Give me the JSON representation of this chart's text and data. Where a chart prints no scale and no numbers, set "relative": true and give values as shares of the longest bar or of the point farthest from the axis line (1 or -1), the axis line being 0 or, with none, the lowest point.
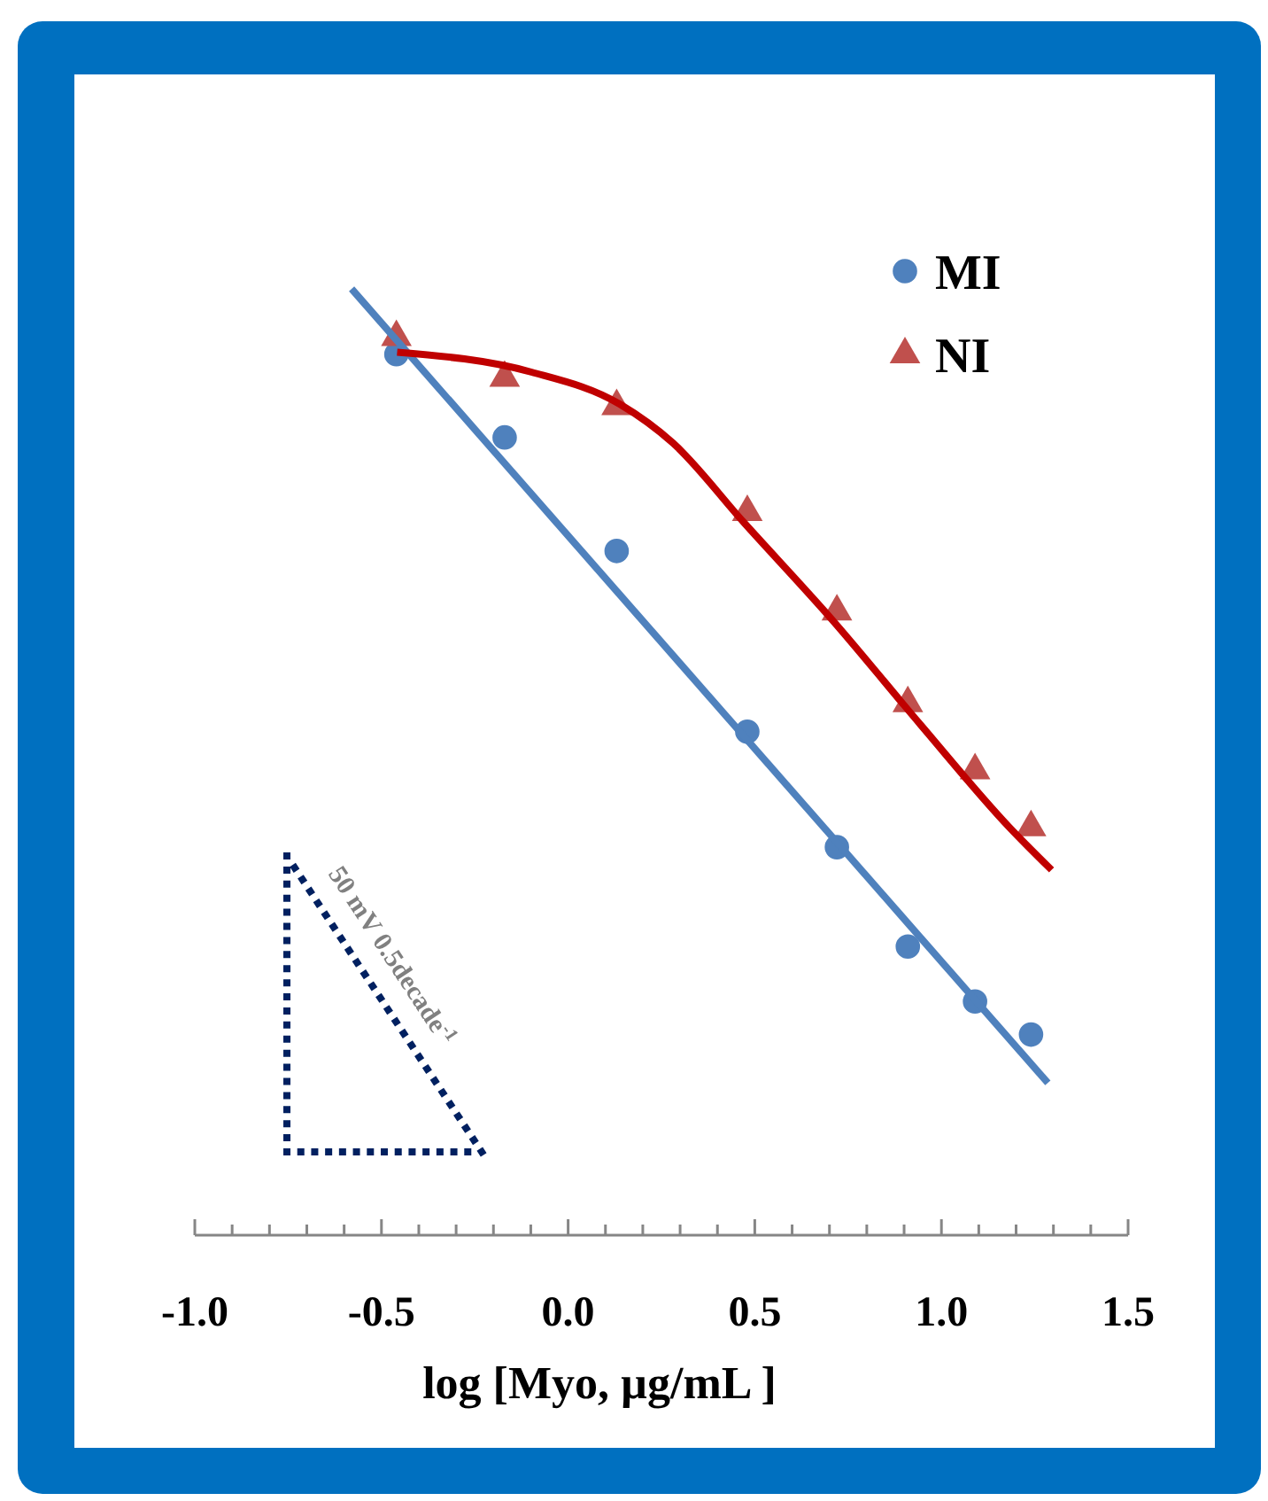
{
  "chart_data": {
    "type": "scatter",
    "relative": true,
    "xlabel": "log [Myo, µg/mL ]",
    "xlim": [
      -1.0,
      1.5
    ],
    "xticks": [
      {
        "value": -1,
        "label": "-1.0"
      },
      {
        "value": -0.9,
        "label": null
      },
      {
        "value": -0.8,
        "label": null
      },
      {
        "value": -0.7,
        "label": null
      },
      {
        "value": -0.6,
        "label": null
      },
      {
        "value": -0.5,
        "label": "-0.5"
      },
      {
        "value": -0.4,
        "label": null
      },
      {
        "value": -0.3,
        "label": null
      },
      {
        "value": -0.2,
        "label": null
      },
      {
        "value": -0.1,
        "label": null
      },
      {
        "value": 0,
        "label": "0.0"
      },
      {
        "value": 0.1,
        "label": null
      },
      {
        "value": 0.2,
        "label": null
      },
      {
        "value": 0.3,
        "label": null
      },
      {
        "value": 0.4,
        "label": null
      },
      {
        "value": 0.5,
        "label": "0.5"
      },
      {
        "value": 0.6,
        "label": null
      },
      {
        "value": 0.7,
        "label": null
      },
      {
        "value": 0.8,
        "label": null
      },
      {
        "value": 0.9,
        "label": null
      },
      {
        "value": 1,
        "label": "1.0"
      },
      {
        "value": 1.1,
        "label": null
      },
      {
        "value": 1.2,
        "label": null
      },
      {
        "value": 1.3,
        "label": null
      },
      {
        "value": 1.4,
        "label": null
      },
      {
        "value": 1.5,
        "label": "1.5"
      }
    ],
    "legend": "top right",
    "grid": false,
    "annotations": [
      "50 mV 0.5decade$^{-1}$"
    ],
    "series": [
      {
        "name": "MI",
        "marker": "circle",
        "color": "#4f81bd",
        "x": [
          -0.46,
          -0.17,
          0.13,
          0.48,
          0.72,
          0.91,
          1.09,
          1.24
        ],
        "values": [
          0.931,
          0.843,
          0.723,
          0.532,
          0.41,
          0.305,
          0.247,
          0.212
        ]
      },
      {
        "name": "NI",
        "marker": "triangle",
        "color": "#c0504d",
        "x": [
          -0.46,
          -0.17,
          0.13,
          0.48,
          0.72,
          0.91,
          1.09,
          1.24
        ],
        "values": [
          0.949,
          0.906,
          0.876,
          0.764,
          0.659,
          0.562,
          0.491,
          0.431
        ]
      },
      {
        "type": "line",
        "marker": "none",
        "color": "#4f81bd",
        "x": [
          -0.58,
          1.285
        ],
        "values": [
          1.0,
          0.161
        ]
      },
      {
        "type": "line",
        "marker": "none",
        "color": "#c00000",
        "x": [
          -0.458,
          -0.098,
          0.139,
          0.281,
          0.471,
          0.708,
          0.945,
          1.182,
          1.295
        ],
        "values": [
          0.933,
          0.912,
          0.878,
          0.837,
          0.753,
          0.65,
          0.539,
          0.431,
          0.386
        ]
      }
    ]
  }
}
